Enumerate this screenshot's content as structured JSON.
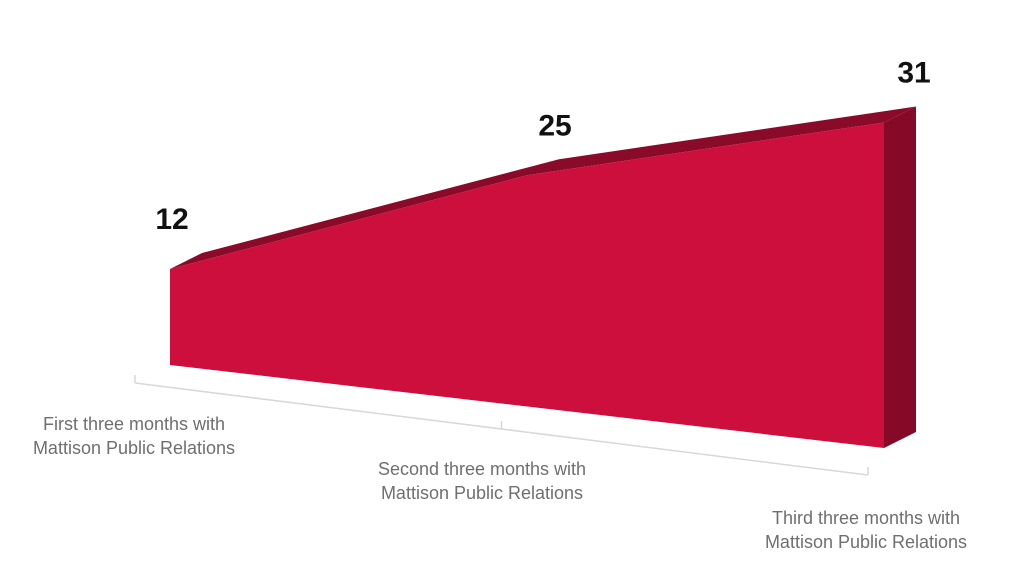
{
  "chart_data": {
    "type": "area",
    "view": "3d-perspective",
    "categories": [
      [
        "First three months with",
        "Mattison Public Relations"
      ],
      [
        "Second three months with",
        "Mattison Public Relations"
      ],
      [
        "Third three months with",
        "Mattison Public Relations"
      ]
    ],
    "series": [
      {
        "values": [
          12,
          25,
          31
        ]
      }
    ],
    "data_labels": [
      "12",
      "25",
      "31"
    ],
    "title": "",
    "xlabel": "",
    "ylabel": "",
    "ylim": [
      0,
      35
    ],
    "grid": false,
    "legend": "none",
    "colors": {
      "front": "#cc0f3c",
      "top": "#8a0a2a",
      "side": "#860927",
      "axis": "#d8d8d8",
      "labels": "#6f6f6f",
      "values": "#111111"
    }
  }
}
